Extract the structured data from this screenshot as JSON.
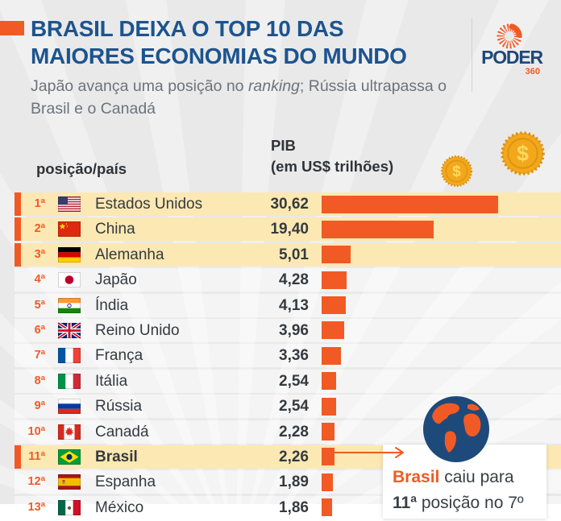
{
  "header": {
    "title_line1": "BRASIL DEIXA O TOP 10 DAS",
    "title_line2": "MAIORES ECONOMIAS DO MUNDO",
    "subtitle_prefix": "Japão avança uma posição no ",
    "subtitle_italic": "ranking",
    "subtitle_after": "; Rússia ultrapassa o",
    "subtitle_line2": "Brasil e o Canadá",
    "brand": {
      "name": "PODER",
      "suffix": "360"
    }
  },
  "columns": {
    "country_header": "posição/país",
    "value_header_line1": "PIB",
    "value_header_line2": "(em US$ trilhões)"
  },
  "chart_data": {
    "type": "bar",
    "orientation": "horizontal",
    "title": "BRASIL DEIXA O TOP 10 DAS MAIORES ECONOMIAS DO MUNDO",
    "subtitle": "Japão avança uma posição no ranking; Rússia ultrapassa o Brasil e o Canadá",
    "category_header": "posição/país",
    "value_header": "PIB (em US$ trilhões)",
    "unit": "US$ trilhões",
    "xlim": [
      0,
      31
    ],
    "bar_color": "#f15a25",
    "highlight_row_color": "#fce8b2",
    "categories": [
      "Estados Unidos",
      "China",
      "Alemanha",
      "Japão",
      "Índia",
      "Reino Unido",
      "França",
      "Itália",
      "Rússia",
      "Canadá",
      "Brasil",
      "Espanha",
      "México"
    ],
    "values": [
      30.62,
      19.4,
      5.01,
      4.28,
      4.13,
      3.96,
      3.36,
      2.54,
      2.54,
      2.28,
      2.26,
      1.89,
      1.86
    ],
    "rows": [
      {
        "position": "1ª",
        "country": "Estados Unidos",
        "flag": "us",
        "value": 30.62,
        "value_label": "30,62",
        "highlight": true
      },
      {
        "position": "2ª",
        "country": "China",
        "flag": "cn",
        "value": 19.4,
        "value_label": "19,40",
        "highlight": true
      },
      {
        "position": "3ª",
        "country": "Alemanha",
        "flag": "de",
        "value": 5.01,
        "value_label": "5,01",
        "highlight": true
      },
      {
        "position": "4ª",
        "country": "Japão",
        "flag": "jp",
        "value": 4.28,
        "value_label": "4,28",
        "highlight": false
      },
      {
        "position": "5ª",
        "country": "Índia",
        "flag": "in",
        "value": 4.13,
        "value_label": "4,13",
        "highlight": false
      },
      {
        "position": "6ª",
        "country": "Reino Unido",
        "flag": "gb",
        "value": 3.96,
        "value_label": "3,96",
        "highlight": false
      },
      {
        "position": "7ª",
        "country": "França",
        "flag": "fr",
        "value": 3.36,
        "value_label": "3,36",
        "highlight": false
      },
      {
        "position": "8ª",
        "country": "Itália",
        "flag": "it",
        "value": 2.54,
        "value_label": "2,54",
        "highlight": false
      },
      {
        "position": "9ª",
        "country": "Rússia",
        "flag": "ru",
        "value": 2.54,
        "value_label": "2,54",
        "highlight": false
      },
      {
        "position": "10ª",
        "country": "Canadá",
        "flag": "ca",
        "value": 2.28,
        "value_label": "2,28",
        "highlight": false
      },
      {
        "position": "11ª",
        "country": "Brasil",
        "flag": "br",
        "value": 2.26,
        "value_label": "2,26",
        "highlight": true,
        "bold": true
      },
      {
        "position": "12ª",
        "country": "Espanha",
        "flag": "es",
        "value": 1.89,
        "value_label": "1,89",
        "highlight": false
      },
      {
        "position": "13ª",
        "country": "México",
        "flag": "mx",
        "value": 1.86,
        "value_label": "1,86",
        "highlight": false
      }
    ]
  },
  "annotation": {
    "line1_highlight": "Brasil",
    "line1_rest": " caiu para",
    "line2_bold": "11ª",
    "line2_rest": " posição no 7º"
  },
  "icons": {
    "brand_logo": "poder360-sunburst-icon",
    "coin_small": "gold-dollar-coin-icon",
    "coin_large": "gold-dollar-coin-icon",
    "globe": "globe-americas-icon",
    "arrow": "right-arrow-icon",
    "flags": [
      "flag-us-icon",
      "flag-cn-icon",
      "flag-de-icon",
      "flag-jp-icon",
      "flag-in-icon",
      "flag-gb-icon",
      "flag-fr-icon",
      "flag-it-icon",
      "flag-ru-icon",
      "flag-ca-icon",
      "flag-br-icon",
      "flag-es-icon",
      "flag-mx-icon"
    ]
  },
  "colors": {
    "accent_orange": "#f15a25",
    "title_blue": "#1c548f",
    "highlight_row": "#fce8b2",
    "coin_gold": "#f3a81c",
    "globe_navy": "#1d4a7a"
  }
}
